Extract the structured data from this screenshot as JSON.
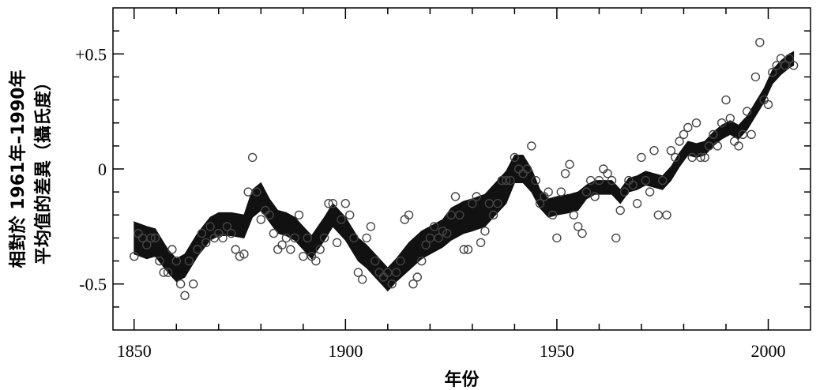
{
  "chart_data": {
    "type": "scatter",
    "title": "",
    "xlabel": "年份",
    "ylabel_line1": "相對於 1961年–1990年",
    "ylabel_line2": "平均值的差異（攝氏度）",
    "xlim": [
      1845,
      2010
    ],
    "ylim": [
      -0.7,
      0.7
    ],
    "x_ticks": [
      1850,
      1900,
      1950,
      2000
    ],
    "x_tick_labels": [
      "1850",
      "1900",
      "1950",
      "2000"
    ],
    "y_ticks": [
      0.5,
      0,
      -0.5
    ],
    "y_tick_labels": [
      "+0.5",
      "0",
      "-0.5"
    ],
    "grid": false,
    "series": [
      {
        "kind": "annual-points",
        "x": [
          1850,
          1851,
          1852,
          1853,
          1854,
          1855,
          1856,
          1857,
          1858,
          1859,
          1860,
          1861,
          1862,
          1863,
          1864,
          1865,
          1866,
          1867,
          1868,
          1869,
          1870,
          1871,
          1872,
          1873,
          1874,
          1875,
          1876,
          1877,
          1878,
          1879,
          1880,
          1881,
          1882,
          1883,
          1884,
          1885,
          1886,
          1887,
          1888,
          1889,
          1890,
          1891,
          1892,
          1893,
          1894,
          1895,
          1896,
          1897,
          1898,
          1899,
          1900,
          1901,
          1902,
          1903,
          1904,
          1905,
          1906,
          1907,
          1908,
          1909,
          1910,
          1911,
          1912,
          1913,
          1914,
          1915,
          1916,
          1917,
          1918,
          1919,
          1920,
          1921,
          1922,
          1923,
          1924,
          1925,
          1926,
          1927,
          1928,
          1929,
          1930,
          1931,
          1932,
          1933,
          1934,
          1935,
          1936,
          1937,
          1938,
          1939,
          1940,
          1941,
          1942,
          1943,
          1944,
          1945,
          1946,
          1947,
          1948,
          1949,
          1950,
          1951,
          1952,
          1953,
          1954,
          1955,
          1956,
          1957,
          1958,
          1959,
          1960,
          1961,
          1962,
          1963,
          1964,
          1965,
          1966,
          1967,
          1968,
          1969,
          1970,
          1971,
          1972,
          1973,
          1974,
          1975,
          1976,
          1977,
          1978,
          1979,
          1980,
          1981,
          1982,
          1983,
          1984,
          1985,
          1986,
          1987,
          1988,
          1989,
          1990,
          1991,
          1992,
          1993,
          1994,
          1995,
          1996,
          1997,
          1998,
          1999,
          2000,
          2001,
          2002,
          2003,
          2004,
          2005,
          2006
        ],
        "y": [
          -0.38,
          -0.28,
          -0.3,
          -0.33,
          -0.3,
          -0.3,
          -0.4,
          -0.45,
          -0.45,
          -0.35,
          -0.4,
          -0.5,
          -0.55,
          -0.4,
          -0.5,
          -0.35,
          -0.28,
          -0.32,
          -0.25,
          -0.3,
          -0.28,
          -0.3,
          -0.25,
          -0.28,
          -0.35,
          -0.38,
          -0.37,
          -0.1,
          0.05,
          -0.1,
          -0.22,
          -0.18,
          -0.2,
          -0.28,
          -0.35,
          -0.33,
          -0.3,
          -0.35,
          -0.3,
          -0.2,
          -0.38,
          -0.3,
          -0.38,
          -0.4,
          -0.35,
          -0.3,
          -0.15,
          -0.15,
          -0.32,
          -0.22,
          -0.15,
          -0.2,
          -0.3,
          -0.45,
          -0.48,
          -0.3,
          -0.25,
          -0.4,
          -0.45,
          -0.47,
          -0.45,
          -0.5,
          -0.45,
          -0.4,
          -0.22,
          -0.2,
          -0.5,
          -0.47,
          -0.4,
          -0.33,
          -0.3,
          -0.25,
          -0.3,
          -0.27,
          -0.28,
          -0.2,
          -0.12,
          -0.2,
          -0.35,
          -0.35,
          -0.15,
          -0.12,
          -0.32,
          -0.27,
          -0.15,
          -0.2,
          -0.15,
          -0.05,
          -0.05,
          -0.05,
          0.05,
          0.0,
          -0.02,
          0.0,
          0.1,
          -0.05,
          -0.15,
          -0.12,
          -0.1,
          -0.2,
          -0.3,
          -0.1,
          -0.02,
          0.02,
          -0.2,
          -0.25,
          -0.28,
          -0.1,
          -0.05,
          -0.12,
          -0.05,
          0.0,
          -0.02,
          -0.05,
          -0.3,
          -0.18,
          -0.1,
          -0.05,
          -0.07,
          -0.15,
          0.05,
          -0.05,
          -0.1,
          0.08,
          -0.2,
          -0.05,
          -0.2,
          0.08,
          0.05,
          0.12,
          0.15,
          0.18,
          0.05,
          0.2,
          0.05,
          0.05,
          0.1,
          0.15,
          0.1,
          0.2,
          0.3,
          0.22,
          0.12,
          0.1,
          0.15,
          0.25,
          0.15,
          0.4,
          0.55,
          0.3,
          0.28,
          0.42,
          0.45,
          0.48,
          0.45,
          0.48,
          0.45
        ]
      },
      {
        "kind": "smoothed-band",
        "x": [
          1850,
          1853,
          1855,
          1858,
          1860,
          1862,
          1865,
          1868,
          1870,
          1873,
          1876,
          1878,
          1880,
          1882,
          1884,
          1886,
          1888,
          1890,
          1892,
          1895,
          1897,
          1900,
          1903,
          1905,
          1907,
          1909,
          1910,
          1912,
          1915,
          1918,
          1920,
          1923,
          1925,
          1928,
          1930,
          1933,
          1935,
          1938,
          1940,
          1942,
          1944,
          1946,
          1948,
          1950,
          1953,
          1955,
          1957,
          1959,
          1961,
          1963,
          1965,
          1967,
          1969,
          1971,
          1973,
          1975,
          1977,
          1979,
          1981,
          1983,
          1985,
          1987,
          1989,
          1991,
          1993,
          1995,
          1997,
          1999,
          2001,
          2003,
          2005,
          2006
        ],
        "y": [
          -0.3,
          -0.32,
          -0.32,
          -0.4,
          -0.44,
          -0.42,
          -0.33,
          -0.26,
          -0.24,
          -0.24,
          -0.25,
          -0.15,
          -0.12,
          -0.18,
          -0.23,
          -0.24,
          -0.26,
          -0.3,
          -0.34,
          -0.26,
          -0.2,
          -0.26,
          -0.35,
          -0.38,
          -0.42,
          -0.46,
          -0.48,
          -0.44,
          -0.38,
          -0.33,
          -0.31,
          -0.28,
          -0.24,
          -0.21,
          -0.2,
          -0.18,
          -0.14,
          -0.08,
          0.0,
          0.0,
          -0.05,
          -0.13,
          -0.17,
          -0.16,
          -0.15,
          -0.14,
          -0.1,
          -0.08,
          -0.08,
          -0.08,
          -0.12,
          -0.07,
          -0.06,
          -0.04,
          -0.05,
          -0.06,
          -0.02,
          0.04,
          0.09,
          0.08,
          0.09,
          0.13,
          0.16,
          0.18,
          0.16,
          0.2,
          0.26,
          0.32,
          0.4,
          0.44,
          0.47,
          0.48
        ],
        "halfwidth": [
          0.07,
          0.07,
          0.06,
          0.05,
          0.05,
          0.05,
          0.05,
          0.05,
          0.05,
          0.05,
          0.05,
          0.06,
          0.06,
          0.05,
          0.05,
          0.05,
          0.05,
          0.05,
          0.05,
          0.05,
          0.05,
          0.05,
          0.05,
          0.05,
          0.05,
          0.05,
          0.05,
          0.05,
          0.06,
          0.06,
          0.06,
          0.06,
          0.07,
          0.07,
          0.07,
          0.07,
          0.07,
          0.07,
          0.06,
          0.06,
          0.05,
          0.04,
          0.04,
          0.04,
          0.04,
          0.04,
          0.03,
          0.03,
          0.03,
          0.03,
          0.03,
          0.03,
          0.03,
          0.03,
          0.03,
          0.03,
          0.03,
          0.03,
          0.03,
          0.03,
          0.03,
          0.03,
          0.03,
          0.03,
          0.03,
          0.03,
          0.03,
          0.03,
          0.03,
          0.03,
          0.03,
          0.03
        ]
      }
    ]
  }
}
